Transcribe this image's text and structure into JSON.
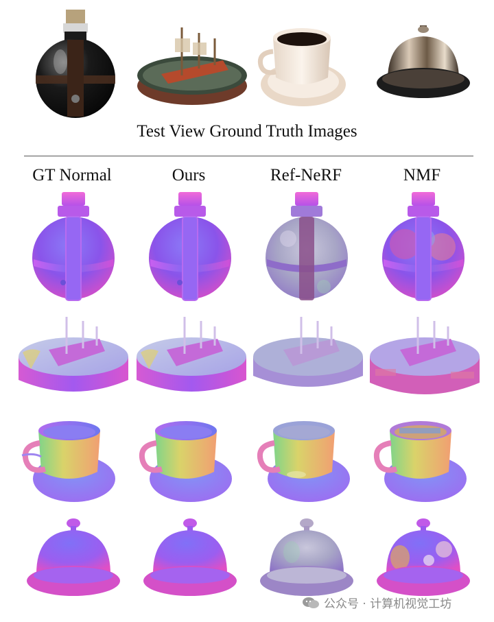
{
  "figure": {
    "caption": "Test View Ground Truth Images",
    "columns": [
      "GT Normal",
      "Ours",
      "Ref-NeRF",
      "NMF"
    ],
    "objects": [
      "potion bottle",
      "ship in tray",
      "coffee cup",
      "service bell"
    ],
    "watermark": "公众号 · 计算机视觉工坊"
  },
  "colors": {
    "normal_purple": "#7d5cf2",
    "normal_magenta": "#d44ce6",
    "normal_pink": "#ec5bd1",
    "normal_blue": "#7a8cf5",
    "normal_green": "#8fd36a",
    "normal_yellow": "#e3c55a",
    "noisy_silver": "#b7b4cf"
  }
}
